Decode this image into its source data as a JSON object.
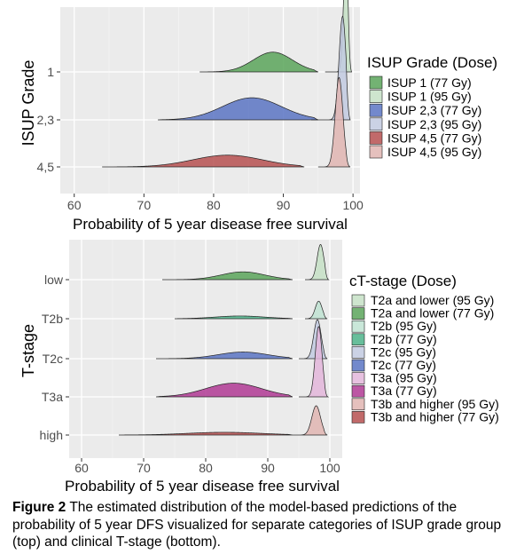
{
  "chart_data": [
    {
      "type": "ridgeline",
      "xlabel": "Probability of 5 year disease free survival",
      "ylabel": "ISUP Grade",
      "xlim": [
        58,
        101
      ],
      "xticks": [
        60,
        70,
        80,
        90,
        100
      ],
      "rows": [
        "1",
        "2,3",
        "4,5"
      ],
      "legend_title": "ISUP Grade (Dose)",
      "legend_position": "right",
      "grid": true,
      "series": [
        {
          "name": "ISUP 1 (77 Gy)",
          "row": "1",
          "color": "#5aa55a",
          "peak": 88.5,
          "width": 2.8,
          "min": 78,
          "max": 95,
          "height": 0.42
        },
        {
          "name": "ISUP 1 (95 Gy)",
          "row": "1",
          "color": "#c5e0c5",
          "peak": 99.0,
          "width": 0.35,
          "min": 96,
          "max": 99.8,
          "height": 2.6
        },
        {
          "name": "ISUP 2,3 (77 Gy)",
          "row": "2,3",
          "color": "#5b74c3",
          "peak": 85.5,
          "width": 4.2,
          "min": 72,
          "max": 95,
          "height": 0.47
        },
        {
          "name": "ISUP 2,3 (95 Gy)",
          "row": "2,3",
          "color": "#c2cae0",
          "peak": 98.5,
          "width": 0.5,
          "min": 94,
          "max": 99.6,
          "height": 2.2
        },
        {
          "name": "ISUP 4,5 (77 Gy)",
          "row": "4,5",
          "color": "#b65050",
          "peak": 82.0,
          "width": 5.0,
          "min": 64,
          "max": 93,
          "height": 0.25
        },
        {
          "name": "ISUP 4,5 (95 Gy)",
          "row": "4,5",
          "color": "#e0b5b1",
          "peak": 98.0,
          "width": 0.55,
          "min": 95,
          "max": 99.6,
          "height": 1.9
        }
      ]
    },
    {
      "type": "ridgeline",
      "xlabel": "Probability of 5 year disease free survival",
      "ylabel": "T-stage",
      "xlim": [
        58,
        102
      ],
      "xticks": [
        60,
        70,
        80,
        90,
        100
      ],
      "rows": [
        "low",
        "T2b",
        "T2c",
        "T3a",
        "high"
      ],
      "legend_title": "cT-stage (Dose)",
      "legend_position": "right",
      "grid": true,
      "series": [
        {
          "name": "T2a and lower (95 Gy)",
          "row": "low",
          "color": "#c5e0c5",
          "peak": 98.5,
          "width": 0.55,
          "min": 96,
          "max": 99.8,
          "height": 0.9
        },
        {
          "name": "T2a and lower (77 Gy)",
          "row": "low",
          "color": "#5aa55a",
          "peak": 86.0,
          "width": 3.5,
          "min": 73,
          "max": 94,
          "height": 0.2
        },
        {
          "name": "T2b (95 Gy)",
          "row": "T2b",
          "color": "#bfe3d2",
          "peak": 98.2,
          "width": 0.55,
          "min": 96,
          "max": 99.6,
          "height": 0.45
        },
        {
          "name": "T2b (77 Gy)",
          "row": "T2b",
          "color": "#4db38a",
          "peak": 85.5,
          "width": 4.0,
          "min": 75,
          "max": 94,
          "height": 0.07
        },
        {
          "name": "T2c (95 Gy)",
          "row": "T2c",
          "color": "#c2cae0",
          "peak": 98.0,
          "width": 0.6,
          "min": 95,
          "max": 99.6,
          "height": 1.0
        },
        {
          "name": "T2c (77 Gy)",
          "row": "T2c",
          "color": "#5b74c3",
          "peak": 86.0,
          "width": 4.0,
          "min": 72,
          "max": 94,
          "height": 0.17
        },
        {
          "name": "T3a (95 Gy)",
          "row": "T3a",
          "color": "#e3b6da",
          "peak": 98.2,
          "width": 0.55,
          "min": 95,
          "max": 99.7,
          "height": 1.8
        },
        {
          "name": "T3a (77 Gy)",
          "row": "T3a",
          "color": "#b03a94",
          "peak": 84.5,
          "width": 4.5,
          "min": 72,
          "max": 94,
          "height": 0.35
        },
        {
          "name": "T3b and higher (95 Gy)",
          "row": "high",
          "color": "#e0b5b1",
          "peak": 97.8,
          "width": 0.7,
          "min": 94,
          "max": 99.6,
          "height": 0.75
        },
        {
          "name": "T3b and higher (77 Gy)",
          "row": "high",
          "color": "#b65050",
          "peak": 83.0,
          "width": 6.0,
          "min": 66,
          "max": 94,
          "height": 0.07
        }
      ]
    }
  ],
  "caption": {
    "bold": "Figure 2",
    "text": " The estimated distribution of the model-based predictions of the probability of 5 year DFS visualized for separate categories of ISUP grade group (top) and clinical T-stage (bottom)."
  }
}
